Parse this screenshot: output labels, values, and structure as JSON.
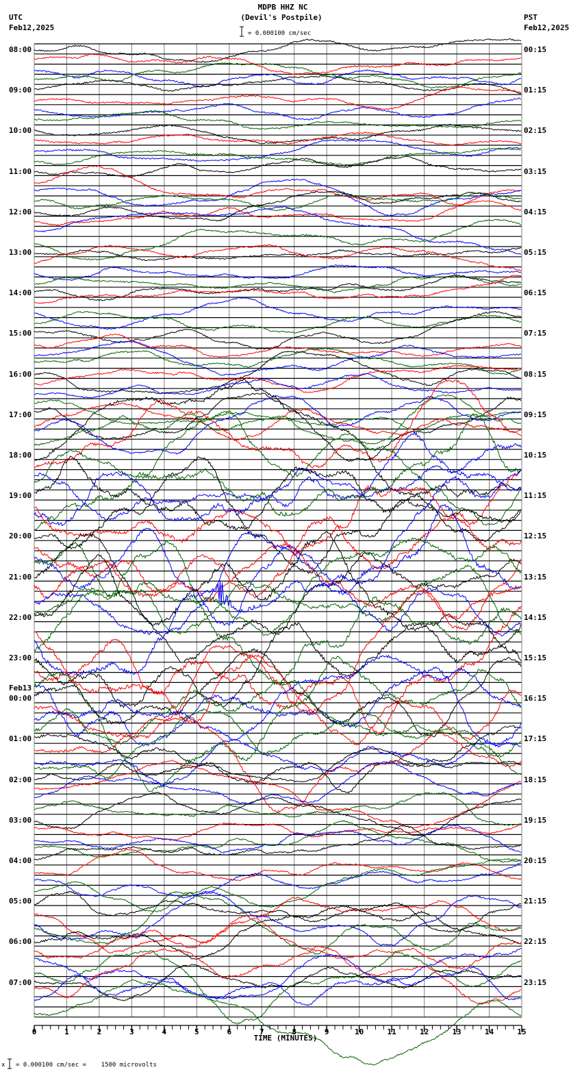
{
  "header": {
    "station": "MDPB HHZ NC",
    "location": "(Devil's Postpile)",
    "scale_text": "= 0.000100 cm/sec",
    "left_tz": "UTC",
    "left_date": "Feb12,2025",
    "right_tz": "PST",
    "right_date": "Feb12,2025"
  },
  "footer": {
    "xlabel": "TIME (MINUTES)",
    "scale_note_prefix": "x",
    "scale_note": "= 0.000100 cm/sec =    1500 microvolts"
  },
  "chart_data": {
    "type": "line",
    "title": "MDPB HHZ NC (Devil's Postpile)",
    "subtitle": "= 0.000100 cm/sec",
    "xlabel": "TIME (MINUTES)",
    "ylabel": "",
    "xlim": [
      0,
      15
    ],
    "x_ticks": [
      "0",
      "1",
      "2",
      "3",
      "4",
      "5",
      "6",
      "7",
      "8",
      "9",
      "10",
      "11",
      "12",
      "13",
      "14",
      "15"
    ],
    "grid": true,
    "trace_colors": [
      "#000000",
      "#ff0000",
      "#0000ff",
      "#006400"
    ],
    "traces_per_hour": 4,
    "left_labels": [
      {
        "row": 0,
        "text": "08:00"
      },
      {
        "row": 1,
        "text": "09:00"
      },
      {
        "row": 2,
        "text": "10:00"
      },
      {
        "row": 3,
        "text": "11:00"
      },
      {
        "row": 4,
        "text": "12:00"
      },
      {
        "row": 5,
        "text": "13:00"
      },
      {
        "row": 6,
        "text": "14:00"
      },
      {
        "row": 7,
        "text": "15:00"
      },
      {
        "row": 8,
        "text": "16:00"
      },
      {
        "row": 9,
        "text": "17:00"
      },
      {
        "row": 10,
        "text": "18:00"
      },
      {
        "row": 11,
        "text": "19:00"
      },
      {
        "row": 12,
        "text": "20:00"
      },
      {
        "row": 13,
        "text": "21:00"
      },
      {
        "row": 14,
        "text": "22:00"
      },
      {
        "row": 15,
        "text": "23:00"
      },
      {
        "row": 16,
        "text": "00:00",
        "date": "Feb13"
      },
      {
        "row": 17,
        "text": "01:00"
      },
      {
        "row": 18,
        "text": "02:00"
      },
      {
        "row": 19,
        "text": "03:00"
      },
      {
        "row": 20,
        "text": "04:00"
      },
      {
        "row": 21,
        "text": "05:00"
      },
      {
        "row": 22,
        "text": "06:00"
      },
      {
        "row": 23,
        "text": "07:00"
      }
    ],
    "right_labels": [
      "00:15",
      "01:15",
      "02:15",
      "03:15",
      "04:15",
      "05:15",
      "06:15",
      "07:15",
      "08:15",
      "09:15",
      "10:15",
      "11:15",
      "12:15",
      "13:15",
      "14:15",
      "15:15",
      "16:15",
      "17:15",
      "18:15",
      "19:15",
      "20:15",
      "21:15",
      "22:15",
      "23:15"
    ],
    "hour_activity": [
      0.5,
      0.4,
      0.35,
      0.6,
      0.55,
      0.5,
      0.55,
      0.6,
      0.7,
      1.2,
      2.0,
      2.6,
      2.4,
      2.2,
      2.8,
      2.4,
      2.0,
      1.6,
      0.9,
      0.8,
      0.8,
      1.2,
      1.3,
      1.2
    ],
    "events": [
      {
        "hour": 14,
        "trace": 2,
        "minute": 5.7,
        "amplitude": 45,
        "color": "#0000ff"
      }
    ]
  }
}
